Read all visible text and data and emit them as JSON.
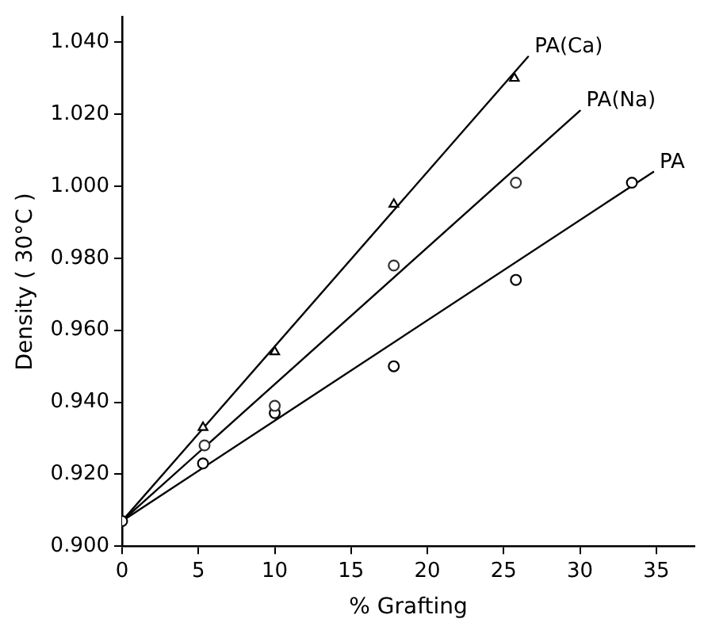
{
  "chart_data": {
    "type": "scatter",
    "xlabel": "% Grafting",
    "ylabel": "Density ( 30°C )",
    "xlim": [
      0,
      37.5
    ],
    "xticks": [
      0,
      5,
      10,
      15,
      20,
      25,
      30,
      35
    ],
    "ylim": [
      0.9,
      1.047
    ],
    "yticks": [
      {
        "value": 0.9,
        "label": "0.900"
      },
      {
        "value": 0.92,
        "label": "0.920"
      },
      {
        "value": 0.94,
        "label": "0.940"
      },
      {
        "value": 0.96,
        "label": "0.960"
      },
      {
        "value": 0.98,
        "label": "0.980"
      },
      {
        "value": 1.0,
        "label": "1.000"
      },
      {
        "value": 1.02,
        "label": "1.020"
      },
      {
        "value": 1.04,
        "label": "1.040"
      }
    ],
    "grid": false,
    "legend": false,
    "series": [
      {
        "type": "scatter",
        "color": "#000000",
        "marker": "triangle",
        "x": [
          5.3,
          10,
          17.8,
          25.7
        ],
        "values": [
          0.933,
          0.954,
          0.995,
          1.03
        ]
      },
      {
        "type": "scatter",
        "color": "#333333",
        "marker": "circle",
        "x": [
          5.4,
          10,
          17.8,
          25.8
        ],
        "values": [
          0.928,
          0.939,
          0.978,
          1.001
        ]
      },
      {
        "type": "scatter",
        "color": "#000000",
        "marker": "circle",
        "x": [
          0,
          5.3,
          10,
          17.8,
          25.8,
          33.4
        ],
        "values": [
          0.907,
          0.923,
          0.937,
          0.95,
          0.974,
          1.001
        ]
      },
      {
        "type": "line",
        "name": "PA(Ca)",
        "color": "#000000",
        "marker": "none",
        "x": [
          0,
          26.6
        ],
        "values": [
          0.907,
          1.036
        ]
      },
      {
        "type": "line",
        "name": "PA(Na)",
        "color": "#000000",
        "marker": "none",
        "x": [
          0,
          30.0
        ],
        "values": [
          0.907,
          1.021
        ]
      },
      {
        "type": "line",
        "name": "PA",
        "color": "#000000",
        "marker": "none",
        "x": [
          0,
          34.8
        ],
        "values": [
          0.907,
          1.004
        ]
      }
    ]
  }
}
